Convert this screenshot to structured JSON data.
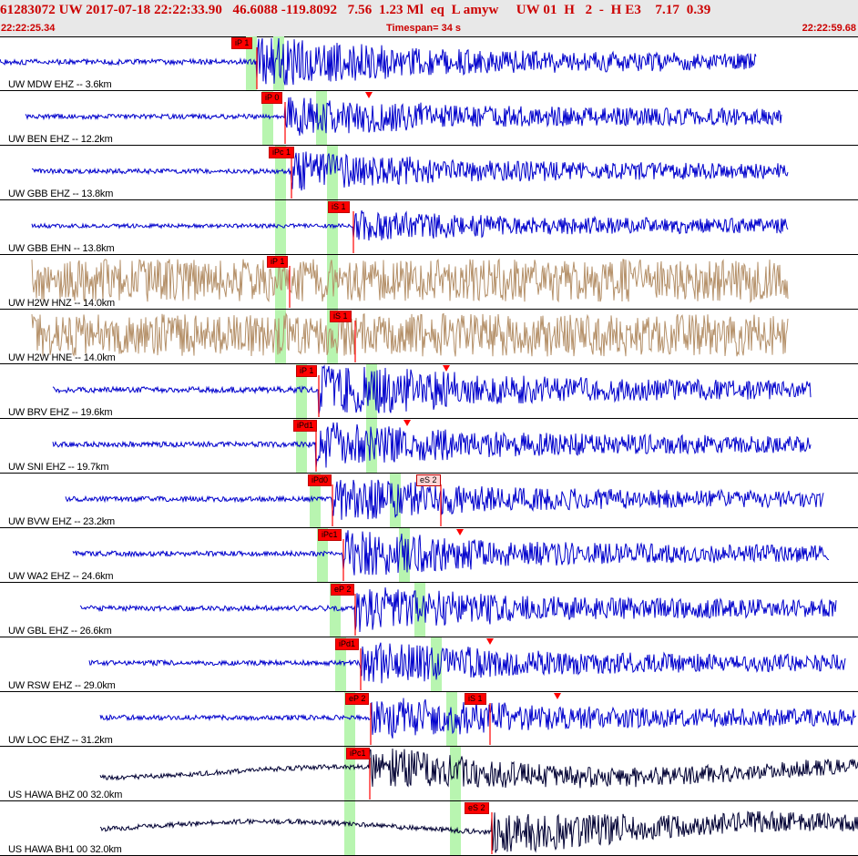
{
  "header": {
    "event_line": "61283072 UW 2017-07-18 22:22:33.90   46.6088 -119.8092   7.56  1.23 Ml  eq  L amyw     UW 01  H   2  -  H E3    7.17  0.39",
    "start_time": "22:22:25.34",
    "timespan": "Timespan=  34 s",
    "end_time": "22:22:59.68"
  },
  "colors": {
    "trace_blue": "#0000cc",
    "trace_tan": "#b5916a",
    "trace_black": "#000033",
    "pick_red": "#ff0000",
    "window_green": "#b8f5b0",
    "header_text": "#cc0000"
  },
  "traces": [
    {
      "label": "UW MDW EHZ -- 3.6km",
      "color": "blue",
      "picks": [
        {
          "text": "iP 1"
        }
      ]
    },
    {
      "label": "UW BEN EHZ -- 12.2km",
      "color": "blue",
      "picks": [
        {
          "text": "iP 0"
        }
      ]
    },
    {
      "label": "UW GBB EHZ -- 13.8km",
      "color": "blue",
      "picks": [
        {
          "text": "iPc 1"
        }
      ]
    },
    {
      "label": "UW GBB EHN -- 13.8km",
      "color": "blue",
      "picks": [
        {
          "text": "iS 1"
        }
      ]
    },
    {
      "label": "UW H2W HNZ -- 14.0km",
      "color": "tan",
      "picks": [
        {
          "text": "iP 1"
        }
      ]
    },
    {
      "label": "UW H2W HNE -- 14.0km",
      "color": "tan",
      "picks": [
        {
          "text": "iS 1"
        }
      ]
    },
    {
      "label": "UW BRV EHZ -- 19.6km",
      "color": "blue",
      "picks": [
        {
          "text": "iP 1"
        }
      ]
    },
    {
      "label": "UW SNI EHZ -- 19.7km",
      "color": "blue",
      "picks": [
        {
          "text": "iPd1"
        }
      ]
    },
    {
      "label": "UW BVW EHZ -- 23.2km",
      "color": "blue",
      "picks": [
        {
          "text": "iPd0"
        },
        {
          "text": "eS 2"
        }
      ]
    },
    {
      "label": "UW WA2 EHZ -- 24.6km",
      "color": "blue",
      "picks": [
        {
          "text": "iPc1"
        }
      ]
    },
    {
      "label": "UW GBL EHZ -- 26.6km",
      "color": "blue",
      "picks": [
        {
          "text": "eP 2"
        }
      ]
    },
    {
      "label": "UW RSW EHZ -- 29.0km",
      "color": "blue",
      "picks": [
        {
          "text": "iPd1"
        }
      ]
    },
    {
      "label": "UW LOC EHZ -- 31.2km",
      "color": "blue",
      "picks": [
        {
          "text": "eP 2"
        },
        {
          "text": "iS 1"
        }
      ]
    },
    {
      "label": "US HAWA BHZ 00 32.0km",
      "color": "black",
      "picks": [
        {
          "text": "iPc1"
        }
      ]
    },
    {
      "label": "US HAWA BH1 00 32.0km",
      "color": "black",
      "picks": [
        {
          "text": "eS 2"
        }
      ]
    }
  ]
}
